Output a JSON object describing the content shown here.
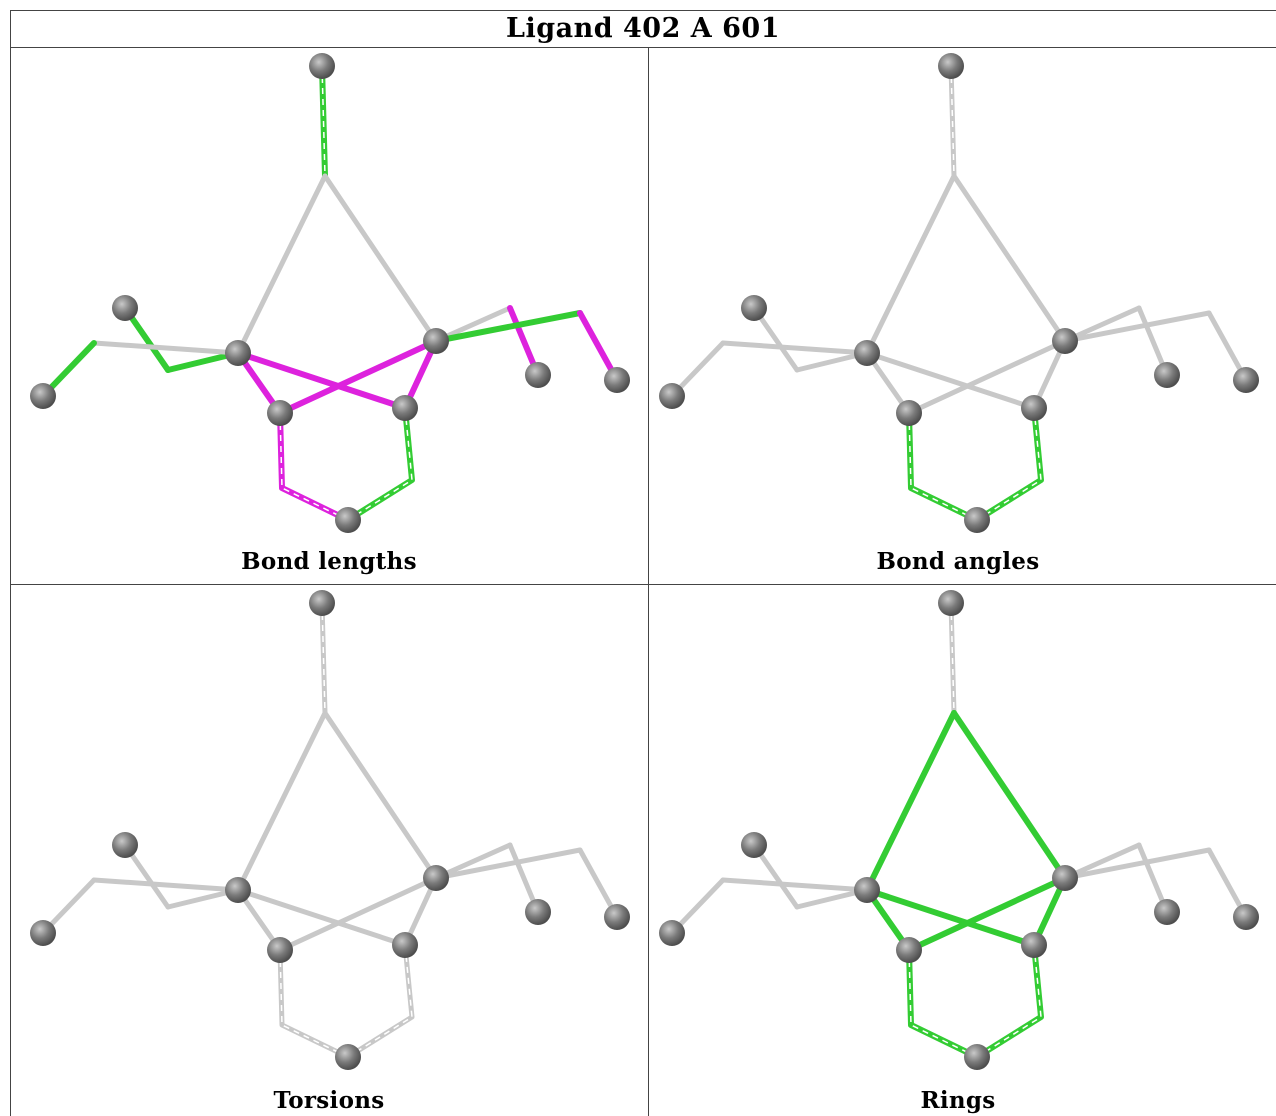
{
  "title": "Ligand 402 A 601",
  "panels": [
    {
      "caption": "Bond lengths",
      "mode": "bond_lengths"
    },
    {
      "caption": "Bond angles",
      "mode": "bond_angles"
    },
    {
      "caption": "Torsions",
      "mode": "torsions"
    },
    {
      "caption": "Rings",
      "mode": "rings"
    }
  ],
  "colors": {
    "neutral_bond": "#c8c8c8",
    "ok_bond": "#33cc33",
    "outlier_bond": "#dd22dd",
    "atom": "#7a7a7a"
  }
}
